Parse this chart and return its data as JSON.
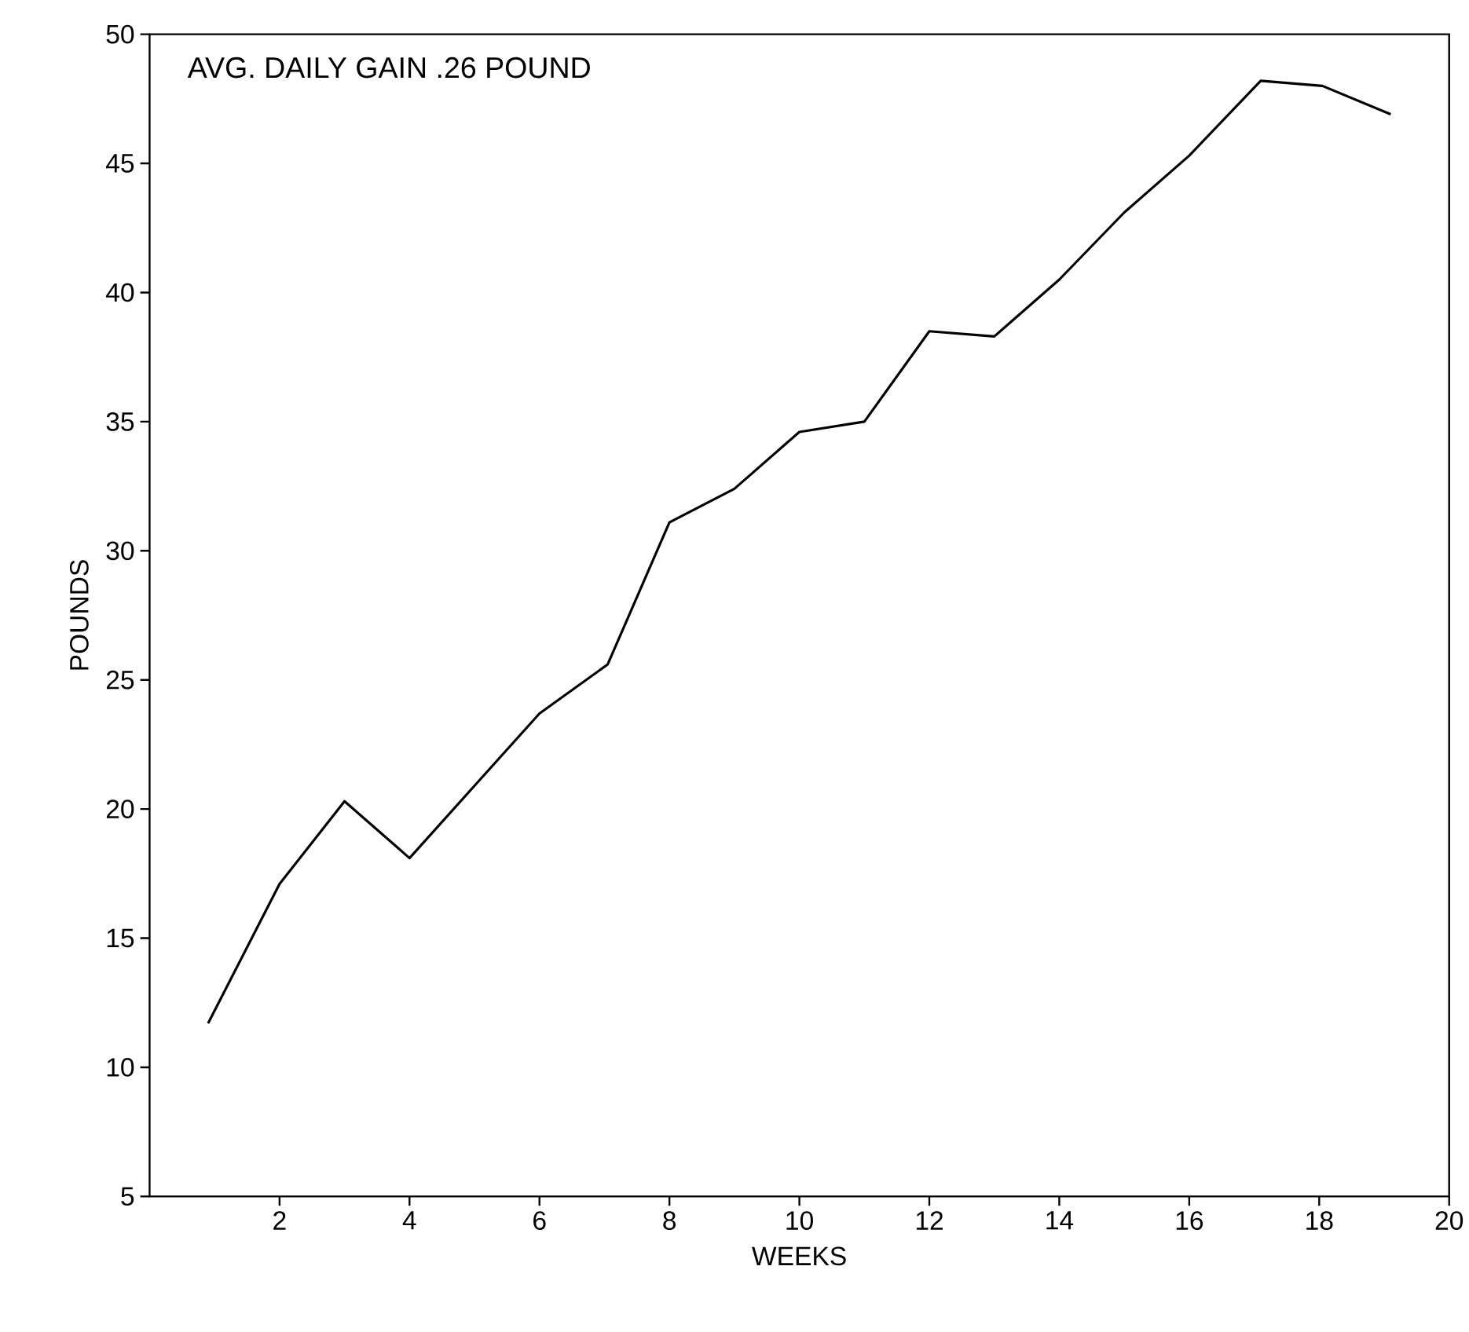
{
  "chart_data": {
    "type": "line",
    "xlabel": "WEEKS",
    "ylabel": "POUNDS",
    "annotations": [
      "AVG. DAILY GAIN .26 POUND"
    ],
    "x": [
      0.9,
      2,
      3,
      4,
      5,
      6,
      7.05,
      8,
      9,
      10,
      11,
      12,
      13,
      14,
      15,
      16,
      17.1,
      18.05,
      19.1
    ],
    "values": [
      11.7,
      17.1,
      20.3,
      18.1,
      20.9,
      23.7,
      25.6,
      31.1,
      32.4,
      34.6,
      35.0,
      38.5,
      38.3,
      40.5,
      43.1,
      45.3,
      48.2,
      48.0,
      46.9
    ],
    "color": "#000000",
    "xlim": [
      0,
      20
    ],
    "ylim": [
      5,
      50
    ],
    "xticks": [
      2,
      4,
      6,
      8,
      10,
      12,
      14,
      16,
      18,
      20
    ],
    "yticks": [
      5,
      10,
      15,
      20,
      25,
      30,
      35,
      40,
      45,
      50
    ]
  }
}
